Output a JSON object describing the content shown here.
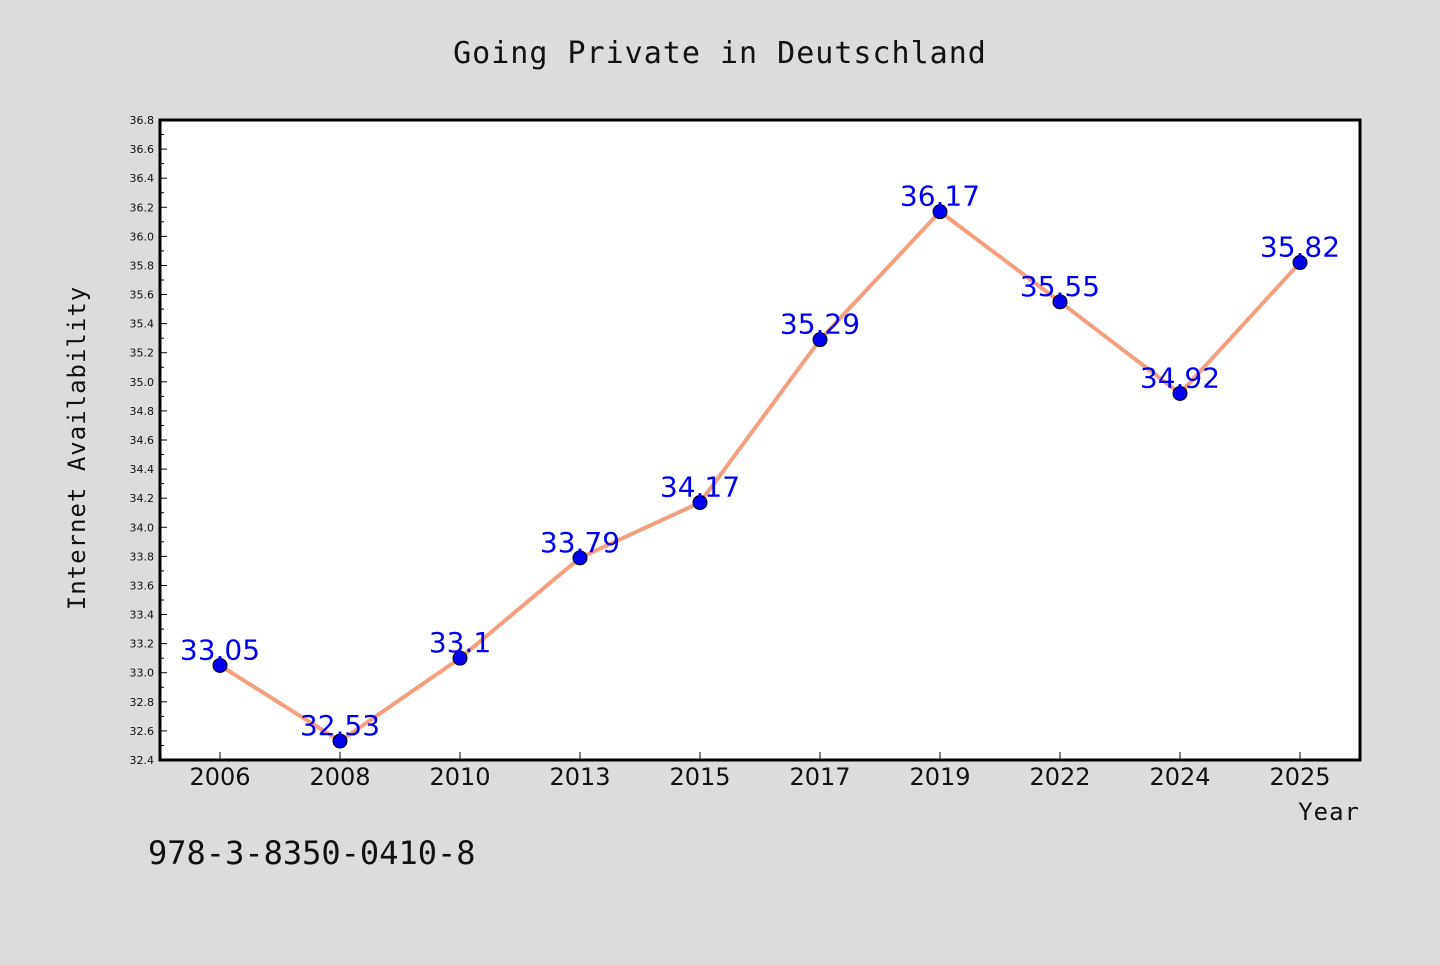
{
  "chart_data": {
    "type": "line",
    "title": "Going Private in Deutschland",
    "xlabel": "Year",
    "ylabel": "Internet Availability",
    "categories": [
      "2006",
      "2008",
      "2010",
      "2013",
      "2015",
      "2017",
      "2019",
      "2022",
      "2024",
      "2025"
    ],
    "series": [
      {
        "values": [
          33.05,
          32.53,
          33.1,
          33.79,
          34.17,
          35.29,
          36.17,
          35.55,
          34.92,
          35.82
        ],
        "labels": [
          "33.05",
          "32.53",
          "33.1",
          "33.79",
          "34.17",
          "35.29",
          "36.17",
          "35.55",
          "34.92",
          "35.82"
        ],
        "line_color": "#f4a080",
        "marker_color": "#0000ee",
        "label_color": "#0000ee"
      }
    ],
    "ylim": [
      32.4,
      36.8
    ],
    "yticks": [
      "32.4",
      "32.6",
      "32.8",
      "33.0",
      "33.2",
      "33.4",
      "33.6",
      "33.8",
      "34.0",
      "34.2",
      "34.4",
      "34.6",
      "34.8",
      "35.0",
      "35.2",
      "35.4",
      "35.6",
      "35.8",
      "36.0",
      "36.2",
      "36.4",
      "36.6",
      "36.8"
    ],
    "grid": false,
    "legend": "none"
  },
  "footer": {
    "isbn": "978-3-8350-0410-8"
  },
  "colors": {
    "background": "#dcdcdc",
    "plot_background": "#ffffff",
    "axis": "#000000"
  }
}
